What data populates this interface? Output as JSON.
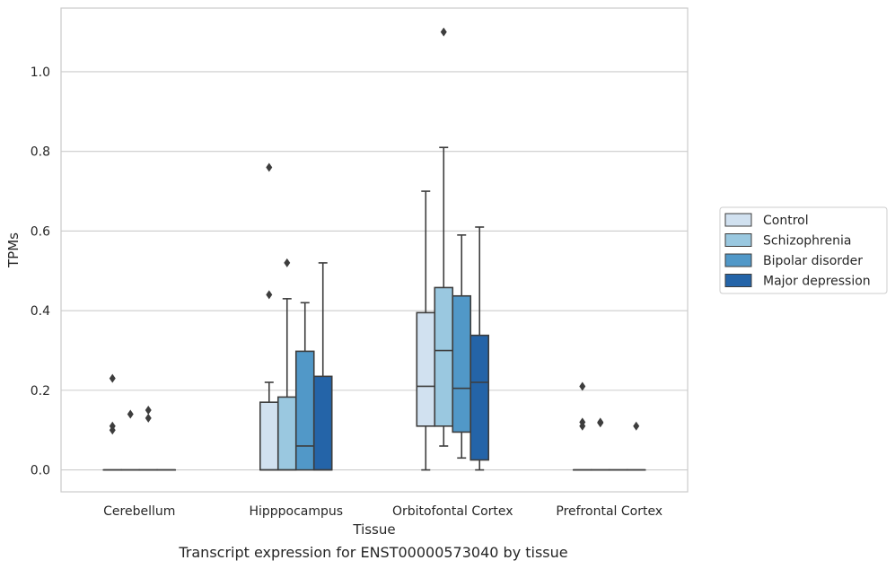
{
  "caption": "Transcript expression for ENST00000573040 by tissue",
  "chart_data": {
    "type": "box",
    "xlabel": "Tissue",
    "ylabel": "TPMs",
    "ylim": [
      -0.055,
      1.16
    ],
    "yticks": [
      0.0,
      0.2,
      0.4,
      0.6,
      0.8,
      1.0
    ],
    "ytick_labels": [
      "0.0",
      "0.2",
      "0.4",
      "0.6",
      "0.8",
      "1.0"
    ],
    "grid": true,
    "legend_position": "right",
    "categories": [
      "Cerebellum",
      "Hipppocampus",
      "Orbitofontal Cortex",
      "Prefrontal Cortex"
    ],
    "series": [
      {
        "name": "Control",
        "color": "#d1e1f0",
        "boxes": [
          {
            "whislo": 0,
            "q1": 0,
            "med": 0,
            "q3": 0,
            "whishi": 0,
            "fliers": [
              0.23,
              0.11,
              0.1
            ]
          },
          {
            "whislo": 0,
            "q1": 0,
            "med": 0,
            "q3": 0.17,
            "whishi": 0.22,
            "fliers": [
              0.76,
              0.44
            ]
          },
          {
            "whislo": 0,
            "q1": 0.11,
            "med": 0.21,
            "q3": 0.395,
            "whishi": 0.7,
            "fliers": []
          },
          {
            "whislo": 0,
            "q1": 0,
            "med": 0,
            "q3": 0,
            "whishi": 0,
            "fliers": [
              0.21,
              0.12,
              0.11
            ]
          }
        ]
      },
      {
        "name": "Schizophrenia",
        "color": "#9ac8e0",
        "boxes": [
          {
            "whislo": 0,
            "q1": 0,
            "med": 0,
            "q3": 0,
            "whishi": 0,
            "fliers": [
              0.14
            ]
          },
          {
            "whislo": 0,
            "q1": 0,
            "med": 0,
            "q3": 0.183,
            "whishi": 0.43,
            "fliers": [
              0.52
            ]
          },
          {
            "whislo": 0.06,
            "q1": 0.11,
            "med": 0.3,
            "q3": 0.458,
            "whishi": 0.81,
            "fliers": [
              1.1
            ]
          },
          {
            "whislo": 0,
            "q1": 0,
            "med": 0,
            "q3": 0,
            "whishi": 0,
            "fliers": [
              0.12,
              0.118
            ]
          }
        ]
      },
      {
        "name": "Bipolar disorder",
        "color": "#5198c8",
        "boxes": [
          {
            "whislo": 0,
            "q1": 0,
            "med": 0,
            "q3": 0,
            "whishi": 0,
            "fliers": [
              0.15,
              0.13
            ]
          },
          {
            "whislo": 0,
            "q1": 0,
            "med": 0.06,
            "q3": 0.298,
            "whishi": 0.42,
            "fliers": []
          },
          {
            "whislo": 0.03,
            "q1": 0.095,
            "med": 0.205,
            "q3": 0.437,
            "whishi": 0.59,
            "fliers": []
          },
          {
            "whislo": 0,
            "q1": 0,
            "med": 0,
            "q3": 0,
            "whishi": 0,
            "fliers": []
          }
        ]
      },
      {
        "name": "Major depression",
        "color": "#2464a8",
        "boxes": [
          {
            "whislo": 0,
            "q1": 0,
            "med": 0,
            "q3": 0,
            "whishi": 0,
            "fliers": []
          },
          {
            "whislo": 0,
            "q1": 0,
            "med": 0,
            "q3": 0.235,
            "whishi": 0.52,
            "fliers": []
          },
          {
            "whislo": 0,
            "q1": 0.025,
            "med": 0.22,
            "q3": 0.338,
            "whishi": 0.61,
            "fliers": []
          },
          {
            "whislo": 0,
            "q1": 0,
            "med": 0,
            "q3": 0,
            "whishi": 0,
            "fliers": [
              0.11
            ]
          }
        ]
      }
    ]
  }
}
